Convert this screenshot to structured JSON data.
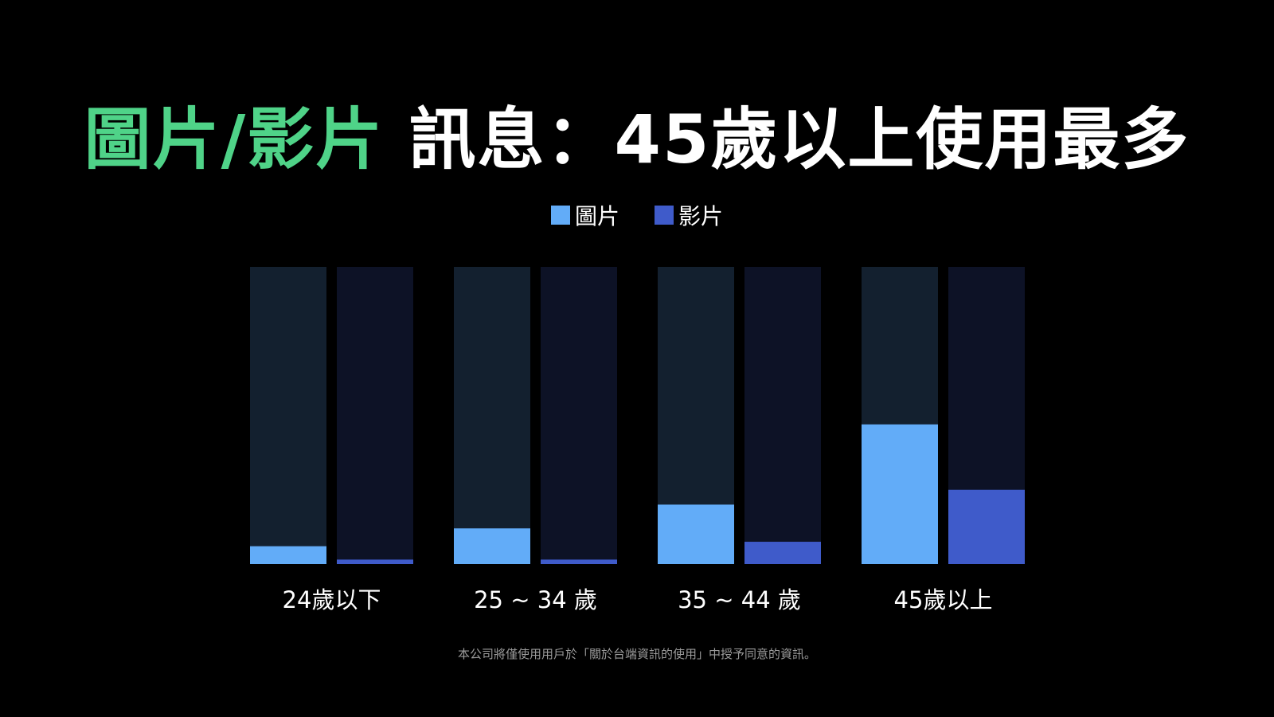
{
  "title": {
    "highlight": "圖片/影片",
    "rest": " 訊息：45歲以上使用最多"
  },
  "colors": {
    "highlight": "#4fd388",
    "image": "#62acf8",
    "video": "#3f5bca",
    "image_track": "#13202f",
    "video_track": "#0d1226"
  },
  "legend": [
    {
      "label": "圖片",
      "color": "#62acf8"
    },
    {
      "label": "影片",
      "color": "#3f5bca"
    }
  ],
  "chart_data": {
    "type": "bar",
    "categories": [
      "24歲以下",
      "25 ~ 34 歲",
      "35 ~ 44 歲",
      "45歲以上"
    ],
    "series": [
      {
        "name": "圖片",
        "values": [
          6,
          12,
          20,
          47
        ]
      },
      {
        "name": "影片",
        "values": [
          1.5,
          1.5,
          7.5,
          25
        ]
      }
    ],
    "ylim": [
      0,
      100
    ],
    "title": "",
    "xlabel": "",
    "ylabel": "",
    "grid": false,
    "legend_position": "top-center"
  },
  "footnote": "本公司將僅使用用戶於「關於台端資訊的使用」中授予同意的資訊。"
}
